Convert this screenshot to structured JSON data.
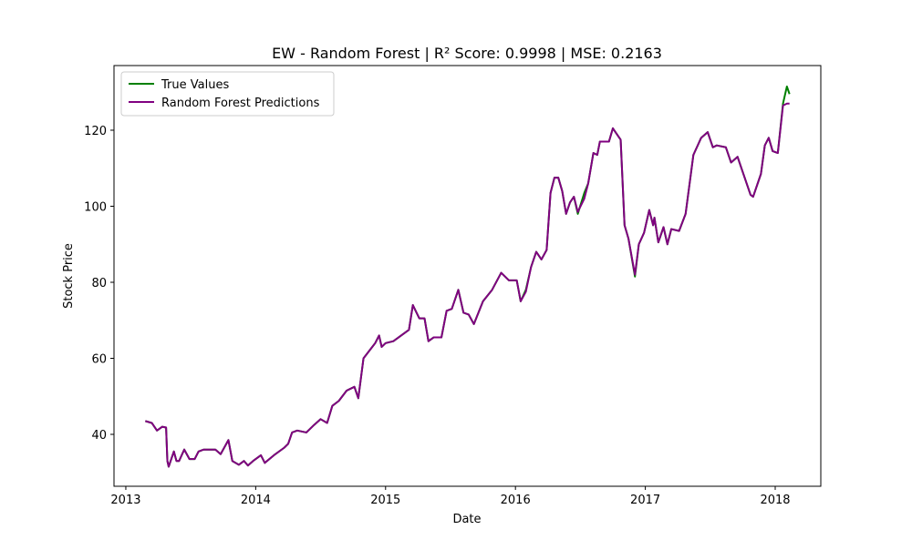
{
  "chart_data": {
    "type": "line",
    "title": "EW - Random Forest | R² Score: 0.9998 | MSE: 0.2163",
    "x_label": "Date",
    "y_label": "Stock Price",
    "x": [
      2013.15,
      2013.2,
      2013.24,
      2013.28,
      2013.31,
      2013.32,
      2013.33,
      2013.37,
      2013.39,
      2013.41,
      2013.45,
      2013.49,
      2013.53,
      2013.56,
      2013.6,
      2013.65,
      2013.69,
      2013.73,
      2013.79,
      2013.82,
      2013.87,
      2013.91,
      2013.94,
      2013.98,
      2014.04,
      2014.07,
      2014.14,
      2014.22,
      2014.25,
      2014.28,
      2014.32,
      2014.39,
      2014.45,
      2014.5,
      2014.55,
      2014.59,
      2014.64,
      2014.7,
      2014.76,
      2014.79,
      2014.83,
      2014.92,
      2014.95,
      2014.97,
      2015.0,
      2015.06,
      2015.12,
      2015.18,
      2015.21,
      2015.26,
      2015.3,
      2015.33,
      2015.37,
      2015.43,
      2015.47,
      2015.51,
      2015.56,
      2015.6,
      2015.64,
      2015.68,
      2015.75,
      2015.82,
      2015.89,
      2015.95,
      2016.01,
      2016.04,
      2016.08,
      2016.12,
      2016.16,
      2016.2,
      2016.24,
      2016.27,
      2016.3,
      2016.33,
      2016.36,
      2016.39,
      2016.42,
      2016.45,
      2016.48,
      2016.53,
      2016.56,
      2016.6,
      2016.63,
      2016.65,
      2016.72,
      2016.75,
      2016.81,
      2016.84,
      2016.87,
      2016.92,
      2016.95,
      2016.99,
      2017.03,
      2017.06,
      2017.07,
      2017.1,
      2017.14,
      2017.17,
      2017.2,
      2017.26,
      2017.31,
      2017.37,
      2017.43,
      2017.48,
      2017.52,
      2017.55,
      2017.62,
      2017.66,
      2017.71,
      2017.75,
      2017.81,
      2017.83,
      2017.89,
      2017.92,
      2017.95,
      2017.98,
      2018.02,
      2018.06,
      2018.09,
      2018.11
    ],
    "series": [
      {
        "name": "True Values",
        "color": "#008000",
        "values": [
          43.5,
          43,
          41,
          42,
          41.8,
          33,
          31.5,
          35.5,
          33,
          33,
          36,
          33.5,
          33.5,
          35.5,
          36,
          36,
          36,
          34.8,
          38.5,
          33,
          32,
          33,
          31.8,
          33,
          34.5,
          32.5,
          34.5,
          36.5,
          37.5,
          40.5,
          41,
          40.5,
          42.5,
          44,
          43,
          47.5,
          48.8,
          51.5,
          52.5,
          49.5,
          60,
          64,
          66,
          63,
          64,
          64.5,
          66,
          67.5,
          74,
          70.5,
          70.5,
          64.5,
          65.5,
          65.5,
          72.5,
          73,
          78,
          72,
          71.5,
          69,
          75,
          78,
          82.5,
          80.5,
          80.5,
          75,
          78,
          84,
          88,
          86,
          88.5,
          103.5,
          107.5,
          107.5,
          104,
          98,
          101,
          102.5,
          98,
          103.5,
          106,
          114,
          113.5,
          117,
          117,
          120.5,
          117.5,
          95,
          91.5,
          81.5,
          90,
          93,
          99,
          95,
          97,
          90.5,
          94.5,
          90,
          94,
          93.5,
          98,
          113.5,
          118,
          119.5,
          115.5,
          116,
          115.5,
          111.5,
          113,
          109,
          103,
          102.5,
          108.5,
          116,
          118,
          114.5,
          114,
          127,
          131.5,
          129.5
        ]
      },
      {
        "name": "Random Forest Predictions",
        "color": "#800080",
        "values": [
          43.5,
          43,
          41,
          42,
          41.8,
          33,
          31.5,
          35.5,
          33,
          33,
          36,
          33.5,
          33.5,
          35.5,
          36,
          36,
          36,
          34.8,
          38.5,
          33,
          32,
          33,
          31.8,
          33,
          34.5,
          32.5,
          34.5,
          36.5,
          37.5,
          40.5,
          41,
          40.5,
          42.5,
          44,
          43,
          47.5,
          48.8,
          51.5,
          52.5,
          49.5,
          60,
          64,
          66,
          63,
          64,
          64.5,
          66,
          67.5,
          74,
          70.5,
          70.5,
          64.5,
          65.5,
          65.5,
          72.5,
          73,
          78,
          72,
          71.5,
          69,
          75,
          78,
          82.5,
          80.5,
          80.5,
          75,
          77.5,
          84,
          88,
          86,
          88.5,
          103.5,
          107.5,
          107.5,
          104,
          98,
          101,
          102.5,
          98.5,
          102,
          106,
          114,
          113.5,
          117,
          117,
          120.5,
          117.5,
          95,
          91.5,
          82,
          90,
          93,
          99,
          95,
          97,
          90.5,
          94.5,
          90,
          94,
          93.5,
          98,
          113.5,
          118,
          119.5,
          115.5,
          116,
          115.5,
          111.5,
          113,
          109,
          103,
          102.5,
          108.5,
          116,
          118,
          114.5,
          114,
          126.5,
          127,
          127
        ]
      }
    ],
    "xlim": [
      2012.909,
      2018.351
    ],
    "xticks": [
      2013,
      2014,
      2015,
      2016,
      2017,
      2018
    ],
    "ylim": [
      26.35,
      137.0
    ],
    "yticks": [
      40,
      60,
      80,
      100,
      120
    ],
    "grid": false,
    "legend": "upper left"
  }
}
